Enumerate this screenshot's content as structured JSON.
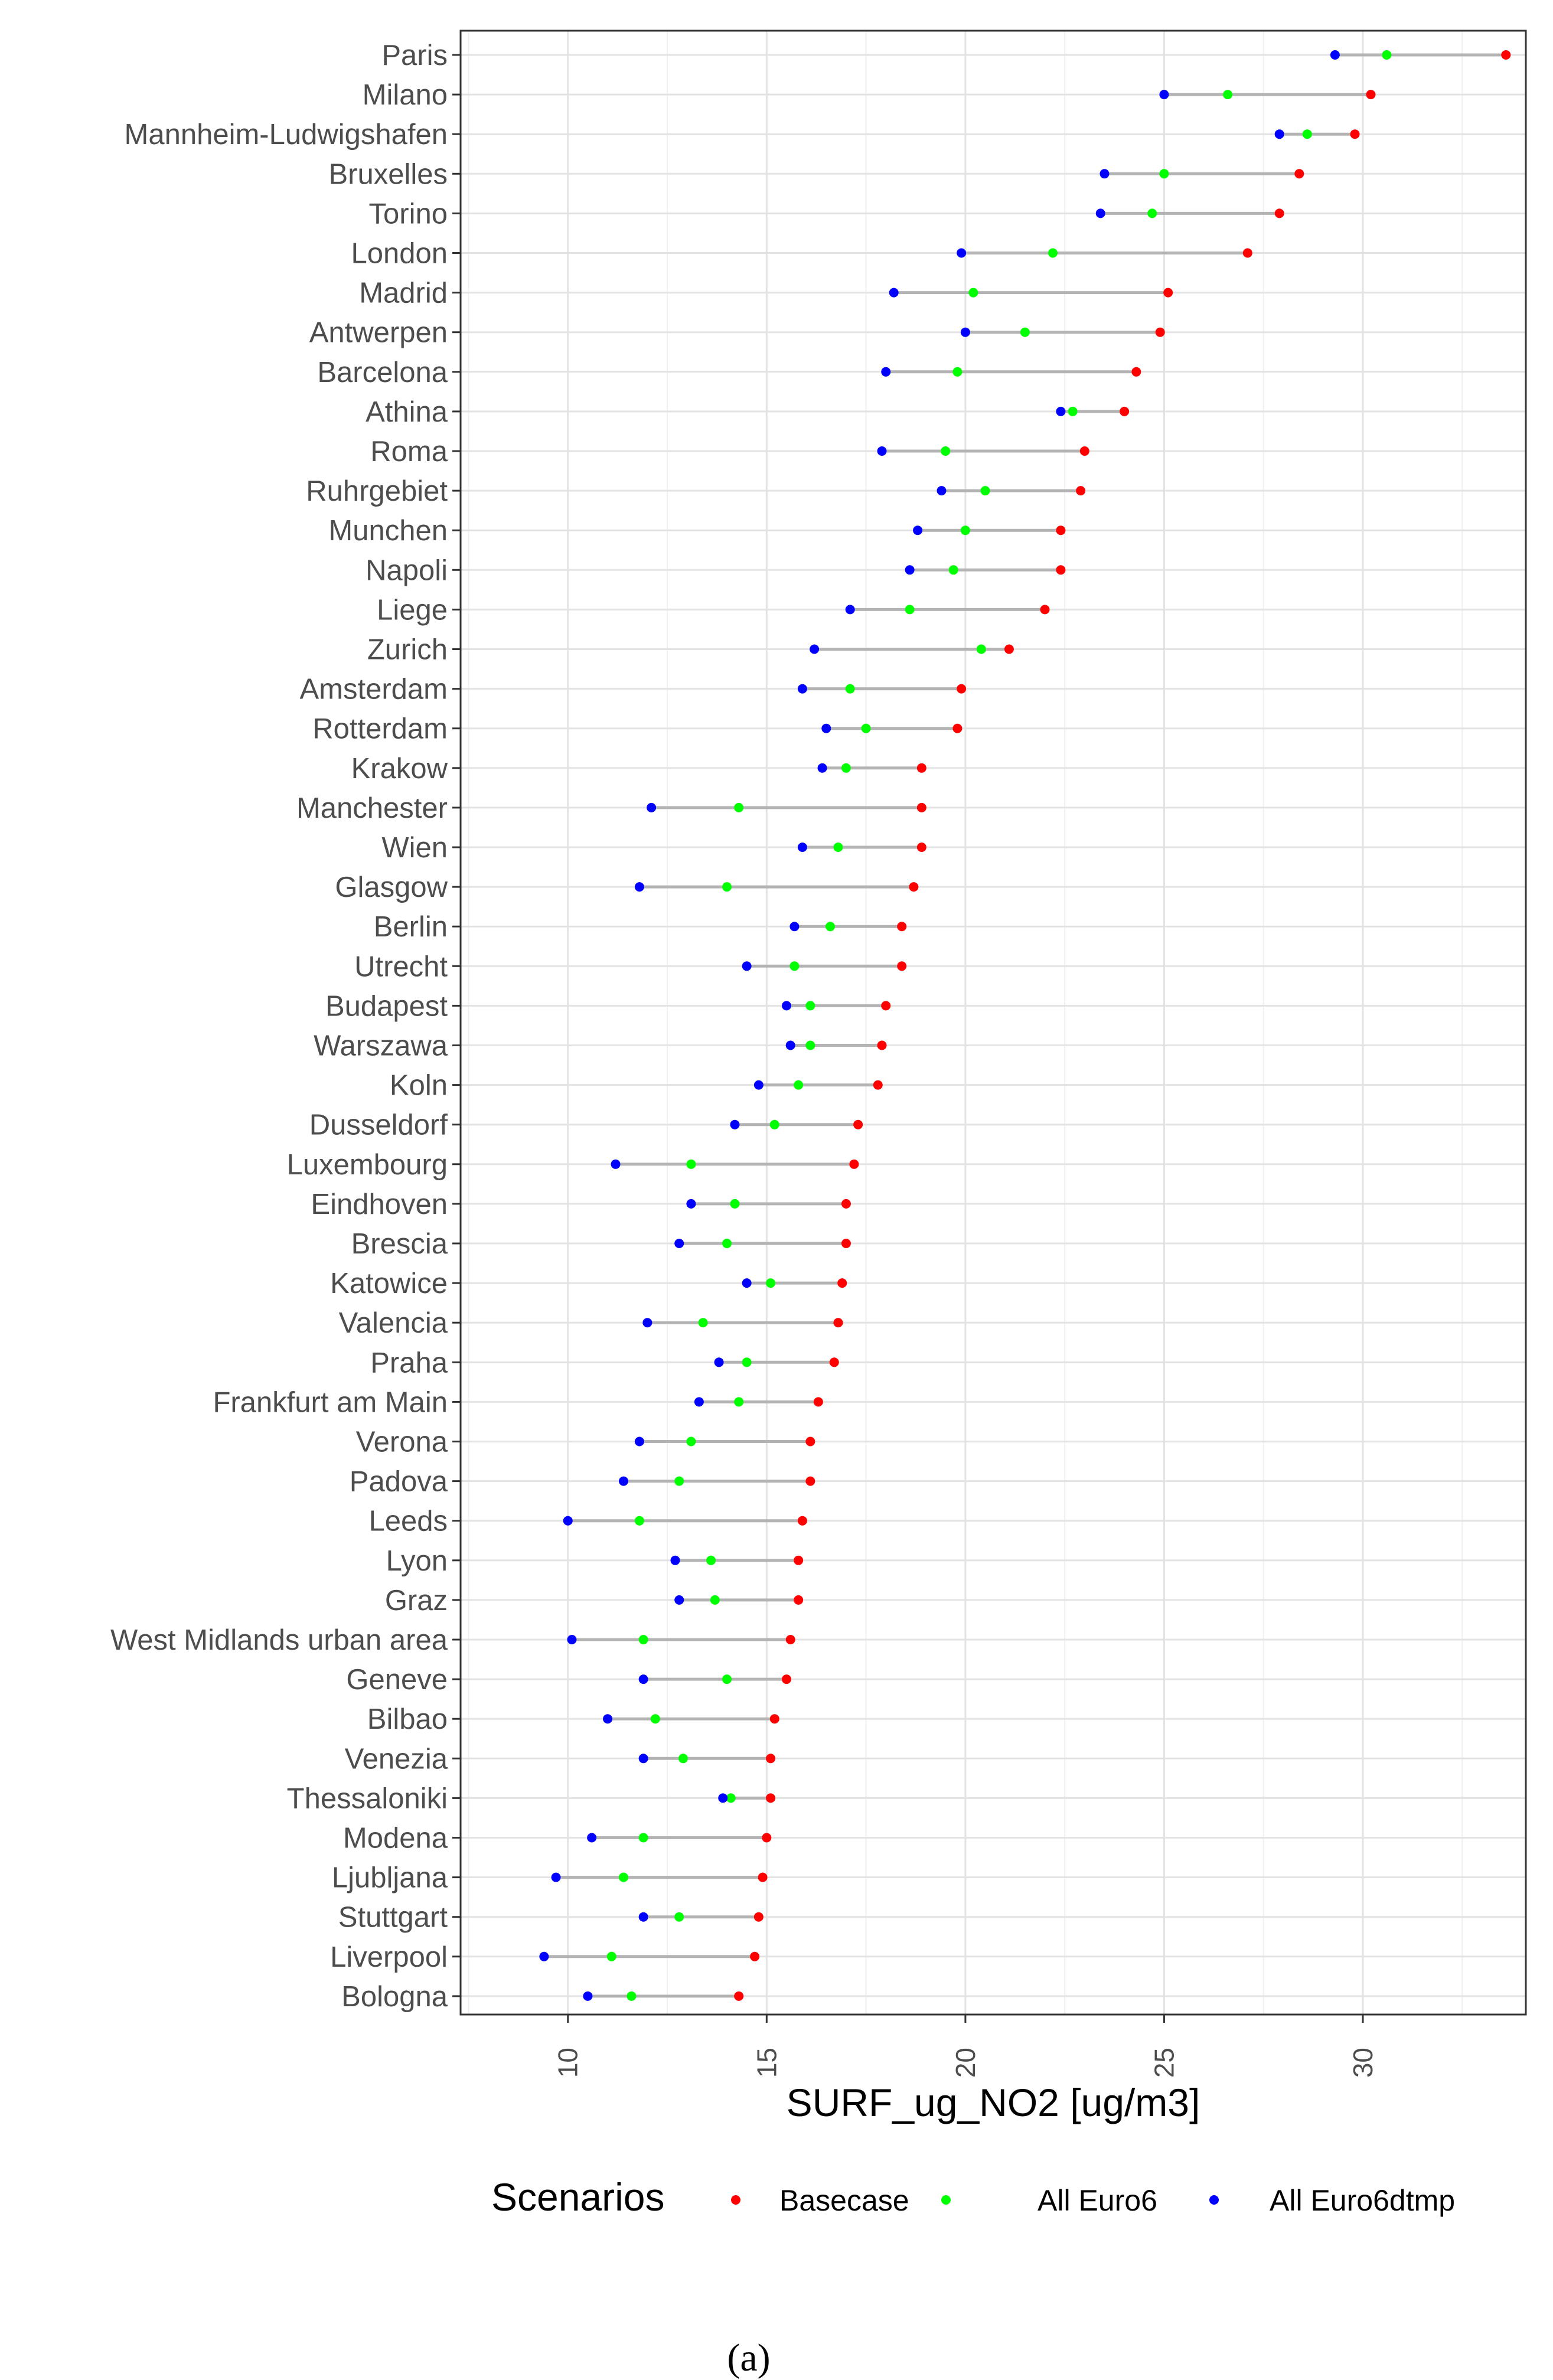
{
  "chart_data": {
    "type": "dumbbell",
    "xlabel": "SURF_ug_NO2 [ug/m3]",
    "ylabel": "",
    "xlim": [
      7.3,
      34.1
    ],
    "xticks": [
      10,
      15,
      20,
      25,
      30
    ],
    "grid": true,
    "legend_title": "Scenarios",
    "legend_position": "bottom",
    "caption": "(a)",
    "series": [
      {
        "name": "Basecase",
        "color": "#ff0000"
      },
      {
        "name": "All Euro6",
        "color": "#00ff00"
      },
      {
        "name": "All Euro6dtmp",
        "color": "#0000ff"
      }
    ],
    "categories": [
      "Paris",
      "Milano",
      "Mannheim-Ludwigshafen",
      "Bruxelles",
      "Torino",
      "London",
      "Madrid",
      "Antwerpen",
      "Barcelona",
      "Athina",
      "Roma",
      "Ruhrgebiet",
      "Munchen",
      "Napoli",
      "Liege",
      "Zurich",
      "Amsterdam",
      "Rotterdam",
      "Krakow",
      "Manchester",
      "Wien",
      "Glasgow",
      "Berlin",
      "Utrecht",
      "Budapest",
      "Warszawa",
      "Koln",
      "Dusseldorf",
      "Luxembourg",
      "Eindhoven",
      "Brescia",
      "Katowice",
      "Valencia",
      "Praha",
      "Frankfurt am Main",
      "Verona",
      "Padova",
      "Leeds",
      "Lyon",
      "Graz",
      "West Midlands urban area",
      "Geneve",
      "Bilbao",
      "Venezia",
      "Thessaloniki",
      "Modena",
      "Ljubljana",
      "Stuttgart",
      "Liverpool",
      "Bologna"
    ],
    "values": {
      "Basecase": [
        33.6,
        30.2,
        29.8,
        28.4,
        27.9,
        27.1,
        25.1,
        24.9,
        24.3,
        24.0,
        23.0,
        22.9,
        22.4,
        22.4,
        22.0,
        21.1,
        19.9,
        19.8,
        18.9,
        18.9,
        18.9,
        18.7,
        18.4,
        18.4,
        18.0,
        17.9,
        17.8,
        17.3,
        17.2,
        17.0,
        17.0,
        16.9,
        16.8,
        16.7,
        16.3,
        16.1,
        16.1,
        15.9,
        15.8,
        15.8,
        15.6,
        15.5,
        15.2,
        15.1,
        15.1,
        15.0,
        14.9,
        14.8,
        14.7,
        14.3
      ],
      "All Euro6": [
        30.6,
        26.6,
        28.6,
        25.0,
        24.7,
        22.2,
        20.2,
        21.5,
        19.8,
        22.7,
        19.5,
        20.5,
        20.0,
        19.7,
        18.6,
        20.4,
        17.1,
        17.5,
        17.0,
        14.3,
        16.8,
        14.0,
        16.6,
        15.7,
        16.1,
        16.1,
        15.8,
        15.2,
        13.1,
        14.2,
        14.0,
        15.1,
        13.4,
        14.5,
        14.3,
        13.1,
        12.8,
        11.8,
        13.6,
        13.7,
        11.9,
        14.0,
        12.2,
        12.9,
        14.1,
        11.9,
        11.4,
        12.8,
        11.1,
        11.6
      ],
      "All Euro6dtmp": [
        29.3,
        25.0,
        27.9,
        23.5,
        23.4,
        19.9,
        18.2,
        20.0,
        18.0,
        22.4,
        17.9,
        19.4,
        18.8,
        18.6,
        17.1,
        16.2,
        15.9,
        16.5,
        16.4,
        12.1,
        15.9,
        11.8,
        15.7,
        14.5,
        15.5,
        15.6,
        14.8,
        14.2,
        11.2,
        13.1,
        12.8,
        14.5,
        12.0,
        13.8,
        13.3,
        11.8,
        11.4,
        10.0,
        12.7,
        12.8,
        10.1,
        11.9,
        11.0,
        11.9,
        13.9,
        10.6,
        9.7,
        11.9,
        9.4,
        10.5
      ]
    }
  }
}
